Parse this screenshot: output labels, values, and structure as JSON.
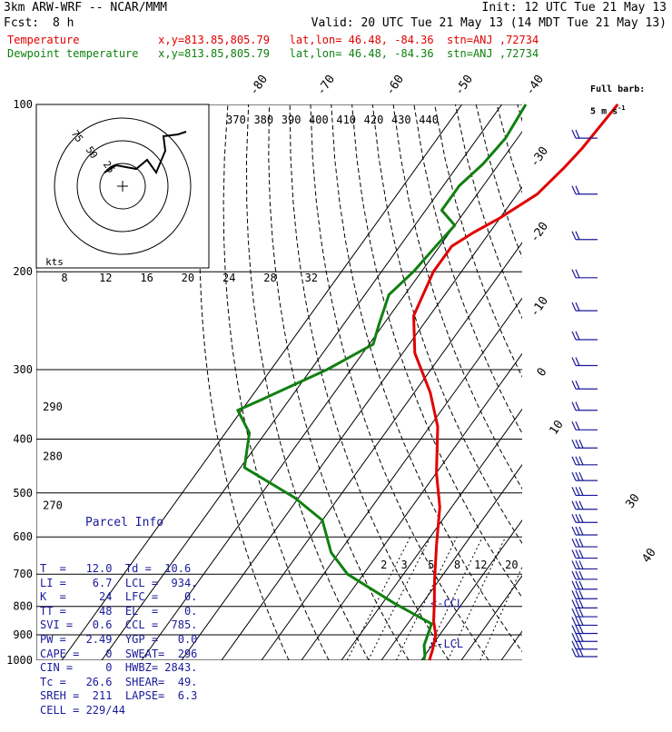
{
  "header": {
    "model": "3km ARW-WRF -- NCAR/MMM",
    "init": "Init: 12 UTC Tue 21 May 13",
    "fcst_label": "Fcst:",
    "fcst_value": "8 h",
    "valid": "Valid: 20 UTC Tue 21 May 13 (14 MDT Tue 21 May 13)",
    "temp_line": "Temperature            x,y=813.85,805.79   lat,lon= 46.48, -84.36  stn=ANJ ,72734",
    "dew_line": "Dewpoint temperature   x,y=813.85,805.79   lat,lon= 46.48, -84.36  stn=ANJ ,72734"
  },
  "colors": {
    "temperature": "#e00000",
    "dewpoint": "#108010",
    "wind": "#1a1a9a",
    "grid": "#000000"
  },
  "barb_legend": {
    "title": "Full barb:",
    "value": "5 m s",
    "sup": "-1"
  },
  "hodograph": {
    "unit": "kts",
    "ring_labels": [
      "75",
      "50",
      "25"
    ]
  },
  "parcel_info": {
    "title": "Parcel Info",
    "rows": [
      "T  =   12.0  Td =  10.6",
      "LI =    6.7  LCL =  934.",
      "K  =     24  LFC =    0.",
      "TT =     48  EL  =    0.",
      "SVI =   0.6  CCL =  785.",
      "PW =   2.49  YGP =   0.0",
      "CAPE =    0  SWEAT=  296",
      "CIN =     0  HWBZ= 2843.",
      "Tc =   26.6  SHEAR=  49.",
      "SREH =  211  LAPSE=  6.3",
      "CELL = 229/44"
    ]
  },
  "chart_data": {
    "type": "line",
    "title": "3km ARW-WRF -- NCAR/MMM",
    "xlabel": "Temperature",
    "ylabel": "Pressure",
    "pressure_levels": [
      100,
      200,
      300,
      400,
      500,
      600,
      700,
      800,
      900,
      1000
    ],
    "y_scale": "log",
    "ylim": [
      1000,
      100
    ],
    "isotherms": [
      -80,
      -70,
      -60,
      -50,
      -40,
      -30,
      -20,
      -10,
      0,
      10,
      20,
      30,
      40
    ],
    "theta_e_labels": [
      370,
      380,
      390,
      400,
      410,
      420,
      430,
      440
    ],
    "mixing_ratio_top": [
      8,
      12,
      16,
      20,
      24,
      28,
      32
    ],
    "mixing_ratio_low": [
      2,
      3,
      5,
      8,
      12,
      20
    ],
    "adiabat_labels": [
      {
        "p": 350,
        "label": "290"
      },
      {
        "p": 430,
        "label": "280"
      },
      {
        "p": 527,
        "label": "270"
      }
    ],
    "annotations": [
      {
        "p": 790,
        "label": "<-CCL"
      },
      {
        "p": 935,
        "label": "<-LCL"
      }
    ],
    "series": [
      {
        "name": "Temperature",
        "points": [
          [
            100,
            -41
          ],
          [
            120,
            -42
          ],
          [
            130,
            -43
          ],
          [
            145,
            -45
          ],
          [
            160,
            -50
          ],
          [
            170,
            -54
          ],
          [
            180,
            -57
          ],
          [
            200,
            -57
          ],
          [
            240,
            -54
          ],
          [
            280,
            -47
          ],
          [
            330,
            -36
          ],
          [
            380,
            -28
          ],
          [
            460,
            -20
          ],
          [
            530,
            -13
          ],
          [
            620,
            -7
          ],
          [
            720,
            -1
          ],
          [
            790,
            3
          ],
          [
            850,
            6
          ],
          [
            900,
            9
          ],
          [
            960,
            11
          ],
          [
            1000,
            12
          ]
        ]
      },
      {
        "name": "Dewpoint temperature",
        "points": [
          [
            100,
            -64
          ],
          [
            115,
            -63
          ],
          [
            128,
            -64
          ],
          [
            140,
            -66
          ],
          [
            155,
            -66
          ],
          [
            165,
            -60
          ],
          [
            180,
            -61
          ],
          [
            200,
            -62
          ],
          [
            220,
            -64
          ],
          [
            250,
            -61
          ],
          [
            270,
            -59
          ],
          [
            300,
            -66
          ],
          [
            340,
            -77
          ],
          [
            355,
            -81
          ],
          [
            390,
            -74
          ],
          [
            450,
            -69
          ],
          [
            510,
            -51
          ],
          [
            560,
            -40
          ],
          [
            640,
            -32
          ],
          [
            700,
            -24
          ],
          [
            790,
            -7
          ],
          [
            860,
            6
          ],
          [
            900,
            7
          ],
          [
            940,
            8
          ],
          [
            980,
            10
          ],
          [
            1000,
            10.6
          ]
        ]
      }
    ]
  }
}
